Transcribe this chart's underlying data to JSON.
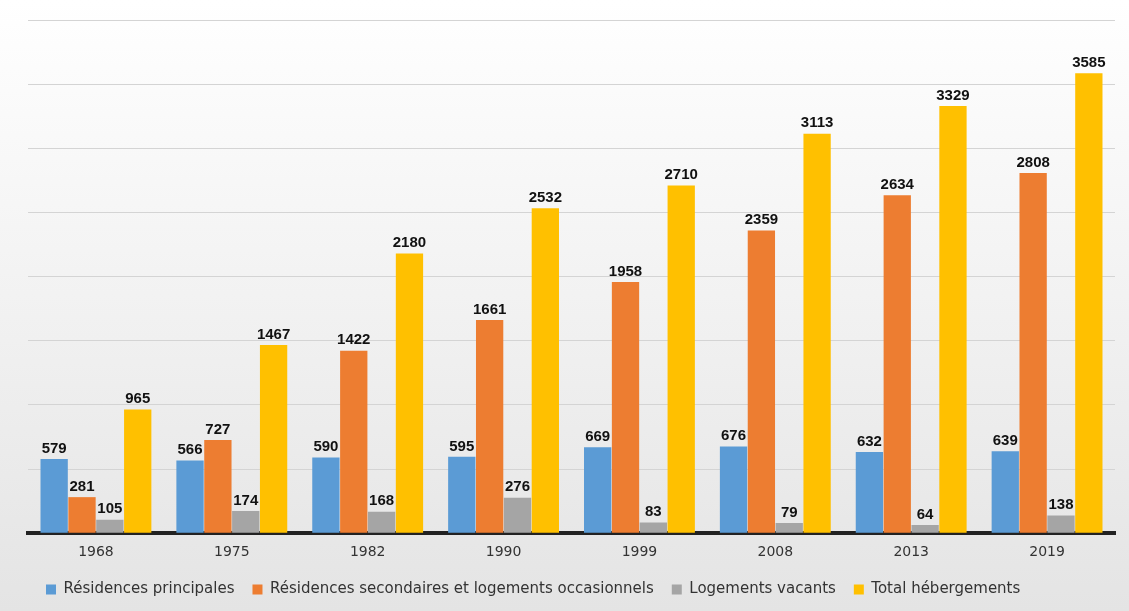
{
  "chart_data": {
    "type": "bar",
    "categories": [
      "1968",
      "1975",
      "1982",
      "1990",
      "1999",
      "2008",
      "2013",
      "2019"
    ],
    "series": [
      {
        "name": "Résidences principales",
        "color": "#5b9bd5",
        "values": [
          579,
          566,
          590,
          595,
          669,
          676,
          632,
          639
        ]
      },
      {
        "name": "Résidences secondaires et logements occasionnels",
        "color": "#ed7d31",
        "values": [
          281,
          727,
          1422,
          1661,
          1958,
          2359,
          2634,
          2808
        ]
      },
      {
        "name": "Logements vacants",
        "color": "#a5a5a5",
        "values": [
          105,
          174,
          168,
          276,
          83,
          79,
          64,
          138
        ]
      },
      {
        "name": "Total hébergements",
        "color": "#ffc000",
        "values": [
          965,
          1467,
          2180,
          2532,
          2710,
          3113,
          3329,
          3585
        ]
      }
    ],
    "ylim": [
      0,
      4000
    ],
    "yticks": [
      {
        "value": 0,
        "label": null
      },
      {
        "value": 500,
        "label": null
      },
      {
        "value": 1000,
        "label": null
      },
      {
        "value": 1500,
        "label": null
      },
      {
        "value": 2000,
        "label": null
      },
      {
        "value": 2500,
        "label": null
      },
      {
        "value": 3000,
        "label": null
      },
      {
        "value": 3500,
        "label": null
      },
      {
        "value": 4000,
        "label": null
      }
    ],
    "tick_labels": "x",
    "grid": "y",
    "legend": "bottom",
    "data_labels": true
  }
}
